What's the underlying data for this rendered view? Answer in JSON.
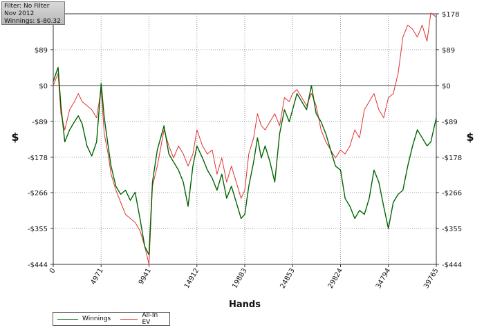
{
  "filter_box": {
    "filter": "Filter: No Filter",
    "period": "Nov 2012",
    "winnings": "Winnings: $-80.32"
  },
  "chart_data": {
    "type": "line",
    "xlabel": "Hands",
    "ylabel_left": "$",
    "ylabel_right": "$",
    "xlim": [
      0,
      39765
    ],
    "ylim": [
      -444,
      178
    ],
    "x_ticks": [
      0,
      4971,
      9941,
      14912,
      19883,
      24853,
      29824,
      34794,
      39765
    ],
    "x_tick_labels": [
      "0",
      "4971",
      "9941",
      "14912",
      "19883",
      "24853",
      "29824",
      "34794",
      "39765"
    ],
    "y_ticks": [
      178,
      89,
      0,
      -89,
      -178,
      -266,
      -355,
      -444
    ],
    "y_tick_labels": [
      "$178",
      "$89",
      "$0",
      "-$89",
      "-$178",
      "-$266",
      "-$355",
      "-$444"
    ],
    "grid": true,
    "legend_position": "bottom-left",
    "series": [
      {
        "name": "Winnings",
        "color": "#006400",
        "x": [
          0,
          500,
          800,
          1200,
          1700,
          2200,
          2600,
          3000,
          3500,
          4000,
          4500,
          4971,
          5300,
          5700,
          6000,
          6500,
          7000,
          7500,
          8000,
          8500,
          9000,
          9500,
          9941,
          10300,
          10800,
          11500,
          12000,
          12500,
          13000,
          13500,
          14000,
          14500,
          14912,
          15500,
          16000,
          16500,
          17000,
          17500,
          18000,
          18500,
          19000,
          19500,
          19883,
          20300,
          20800,
          21200,
          21600,
          22000,
          22500,
          23000,
          23500,
          24000,
          24500,
          24853,
          25300,
          25800,
          26300,
          26800,
          27300,
          27800,
          28300,
          28800,
          29300,
          29824,
          30300,
          30800,
          31300,
          31800,
          32300,
          32800,
          33300,
          33800,
          34300,
          34794,
          35300,
          35800,
          36300,
          36800,
          37300,
          37800,
          38300,
          38800,
          39200,
          39765
        ],
        "y": [
          10,
          45,
          -50,
          -140,
          -110,
          -90,
          -75,
          -95,
          -150,
          -175,
          -140,
          5,
          -80,
          -150,
          -200,
          -250,
          -270,
          -260,
          -285,
          -265,
          -330,
          -400,
          -420,
          -240,
          -160,
          -100,
          -170,
          -190,
          -210,
          -240,
          -300,
          -200,
          -150,
          -180,
          -210,
          -230,
          -260,
          -220,
          -280,
          -250,
          -290,
          -330,
          -320,
          -250,
          -190,
          -130,
          -180,
          -150,
          -190,
          -240,
          -120,
          -60,
          -90,
          -60,
          -20,
          -40,
          -60,
          0,
          -70,
          -90,
          -120,
          -160,
          -200,
          -210,
          -280,
          -300,
          -330,
          -310,
          -320,
          -280,
          -210,
          -240,
          -300,
          -355,
          -290,
          -270,
          -260,
          -200,
          -150,
          -110,
          -130,
          -150,
          -140,
          -80
        ]
      },
      {
        "name": "All-In EV",
        "color": "#e03030",
        "x": [
          0,
          500,
          800,
          1200,
          1700,
          2200,
          2600,
          3000,
          3500,
          4000,
          4500,
          4971,
          5300,
          5700,
          6000,
          6500,
          7000,
          7500,
          8000,
          8500,
          9000,
          9500,
          9941,
          10300,
          10800,
          11500,
          12000,
          12500,
          13000,
          13500,
          14000,
          14500,
          14912,
          15500,
          16000,
          16500,
          17000,
          17500,
          18000,
          18500,
          19000,
          19500,
          19883,
          20300,
          20800,
          21200,
          21600,
          22000,
          22500,
          23000,
          23500,
          24000,
          24500,
          24853,
          25300,
          25800,
          26300,
          26800,
          27300,
          27800,
          28300,
          28800,
          29300,
          29824,
          30300,
          30800,
          31300,
          31800,
          32300,
          32800,
          33300,
          33800,
          34300,
          34794,
          35300,
          35800,
          36300,
          36800,
          37300,
          37800,
          38300,
          38800,
          39200,
          39765
        ],
        "y": [
          0,
          30,
          -70,
          -110,
          -60,
          -40,
          -20,
          -40,
          -50,
          -60,
          -80,
          -10,
          -120,
          -170,
          -220,
          -260,
          -290,
          -320,
          -330,
          -340,
          -360,
          -400,
          -444,
          -250,
          -200,
          -110,
          -150,
          -180,
          -150,
          -170,
          -200,
          -170,
          -110,
          -150,
          -170,
          -160,
          -220,
          -180,
          -240,
          -200,
          -240,
          -280,
          -260,
          -170,
          -130,
          -70,
          -100,
          -110,
          -90,
          -70,
          -100,
          -30,
          -40,
          -20,
          -10,
          -30,
          -50,
          -20,
          -50,
          -110,
          -140,
          -160,
          -180,
          -160,
          -170,
          -150,
          -110,
          -130,
          -60,
          -40,
          -20,
          -60,
          -80,
          -30,
          -20,
          30,
          120,
          150,
          140,
          120,
          150,
          110,
          180,
          170
        ]
      }
    ]
  }
}
